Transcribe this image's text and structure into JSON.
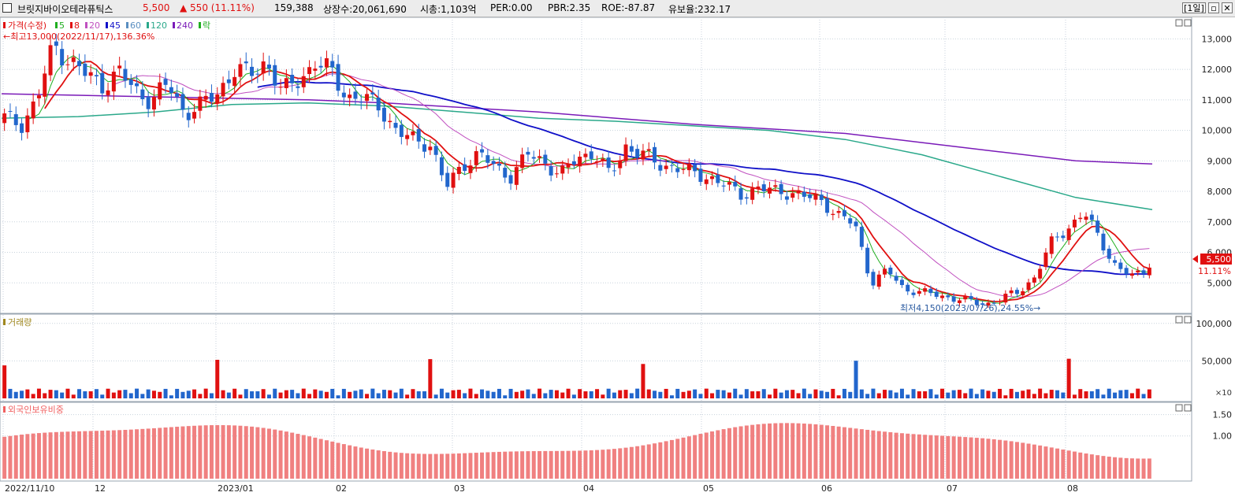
{
  "header": {
    "name": "브릿지바이오테라퓨틱스",
    "price": "5,500",
    "change": "▲ 550 (11.11%)",
    "volume": "159,388",
    "listed": "상장수:20,061,690",
    "mcap": "시총:1,103억",
    "per": "PER:0.00",
    "pbr": "PBR:2.35",
    "roe": "ROE:-87.87",
    "float": "유보율:232.17",
    "period_button": "[1일]"
  },
  "legend": {
    "price_label": "가격(수정)",
    "ma": [
      {
        "label": "5",
        "color": "#1fae1f"
      },
      {
        "label": "8",
        "color": "#e01010"
      },
      {
        "label": "20",
        "color": "#c050c0"
      },
      {
        "label": "45",
        "color": "#1010c8"
      },
      {
        "label": "60",
        "color": "#5a8ec0"
      },
      {
        "label": "120",
        "color": "#2aa88a"
      },
      {
        "label": "240",
        "color": "#7a1ab8"
      }
    ],
    "fall_label": "락",
    "high_note": "←최고13,000(2022/11/17),136.36%",
    "low_note": "최저4,150(2023/07/26),24.55%→",
    "last_price": "5,500",
    "last_pct": "11.11%"
  },
  "volume_panel": {
    "title": "거래량",
    "unit": "×10"
  },
  "foreign_panel": {
    "title": "외국인보유비중"
  },
  "x_axis": [
    "2022/11/10",
    "12",
    "2023/01",
    "02",
    "03",
    "04",
    "05",
    "06",
    "07",
    "08"
  ],
  "colors": {
    "up": "#e01010",
    "down": "#2266cc",
    "ma5": "#1fae1f",
    "ma8": "#e01010",
    "ma20": "#c050c0",
    "ma45": "#1010c8",
    "ma60": "#5a8ec0",
    "ma120": "#2aa88a",
    "ma240": "#7a1ab8",
    "foreign": "#f08080",
    "grid": "#c8d2dc"
  },
  "chart_data": [
    {
      "type": "candlestick",
      "title": "가격(수정)",
      "ylim": [
        4000,
        13500
      ],
      "yticks": [
        13000,
        12000,
        11000,
        10000,
        9000,
        8000,
        7000,
        6000,
        5000
      ],
      "ytick_labels": [
        "13,000",
        "12,000",
        "11,000",
        "10,000",
        "9,000",
        "8,000",
        "7,000",
        "6,000",
        "5,000"
      ],
      "x_labels": [
        "2022/11/10",
        "12",
        "2023/01",
        "02",
        "03",
        "04",
        "05",
        "06",
        "07",
        "08"
      ],
      "ohlc_anchor_closes": [
        10400,
        10200,
        11000,
        12800,
        12300,
        11800,
        11500,
        11900,
        11300,
        11000,
        11500,
        10600,
        10800,
        11200,
        12000,
        11800,
        12300,
        11200,
        11700,
        12200,
        11900,
        11100,
        11000,
        10800,
        9900,
        9700,
        9600,
        8100,
        8900,
        9200,
        8800,
        8500,
        9200,
        9000,
        8500,
        9100,
        9300,
        8500,
        9500,
        9200,
        8900,
        8800,
        8600,
        8500,
        8200,
        7900,
        8100,
        8000,
        8000,
        7800,
        7700,
        7200,
        6900,
        5000,
        5400,
        4800,
        4700,
        4600,
        4500,
        4400,
        4300,
        4500,
        4700,
        5200,
        6300,
        6800,
        7300,
        6400,
        5500,
        5200,
        5500
      ],
      "ma_series": [
        {
          "name": "240",
          "values": [
            11200,
            11150,
            11100,
            11050,
            11000,
            10900,
            10750,
            10600,
            10400,
            10200,
            10050,
            9900,
            9600,
            9300,
            9000,
            8900
          ]
        },
        {
          "name": "120",
          "values": [
            10400,
            10450,
            10600,
            10850,
            10900,
            10800,
            10600,
            10400,
            10300,
            10150,
            10000,
            9700,
            9200,
            8500,
            7800,
            7400
          ]
        }
      ],
      "highlights": {
        "high": 13000,
        "high_date": "2022/11/17",
        "low": 4150,
        "low_date": "2023/07/26",
        "last": 5500
      }
    },
    {
      "type": "bar",
      "title": "거래량",
      "ylim": [
        0,
        105000
      ],
      "yticks": [
        100000,
        50000
      ],
      "ytick_labels": [
        "100,000",
        "50,000"
      ],
      "unit": "×10"
    },
    {
      "type": "bar",
      "title": "외국인보유비중",
      "ylim": [
        0,
        1.75
      ],
      "yticks": [
        1.5,
        1.0
      ],
      "ytick_labels": [
        "1.50",
        "1.00"
      ]
    }
  ]
}
